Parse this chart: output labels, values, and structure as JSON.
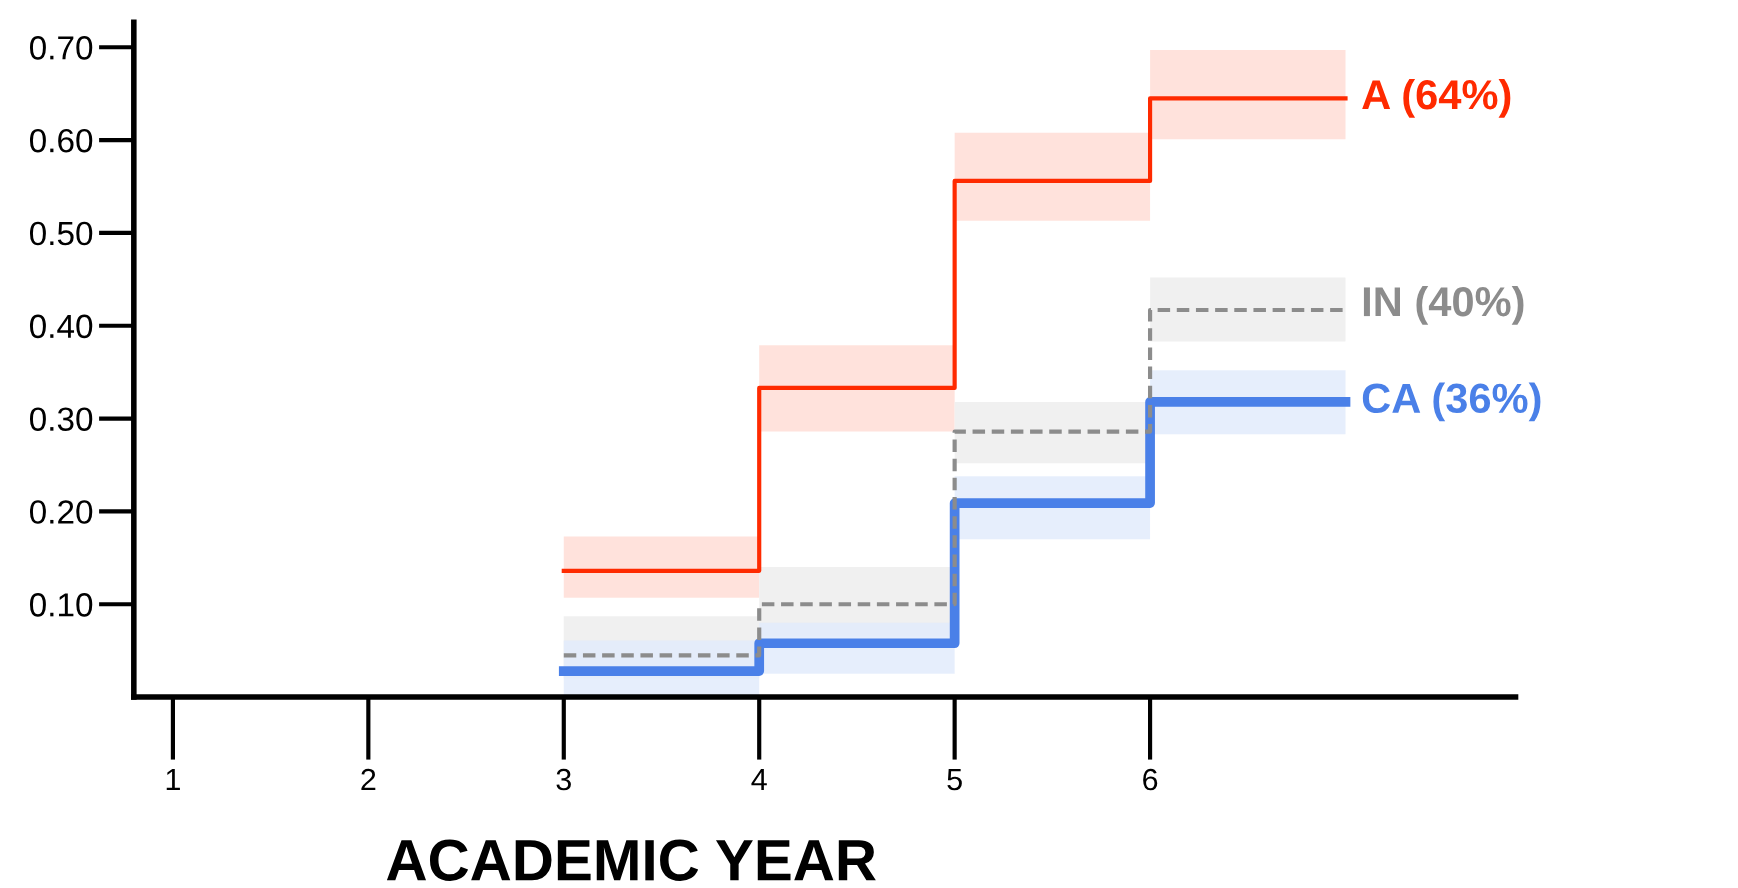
{
  "chart_data": {
    "type": "step",
    "xlabel": "ACADEMIC YEAR",
    "x": [
      3,
      4,
      5,
      6,
      7
    ],
    "series": [
      {
        "name": "A (64%)",
        "color": "#ff2a00",
        "values": [
          0.136,
          0.333,
          0.556,
          0.645,
          0.645
        ],
        "lower": [
          0.107,
          0.286,
          0.513,
          0.601,
          0.601
        ],
        "upper": [
          0.173,
          0.379,
          0.608,
          0.697,
          0.697
        ],
        "line_style": "solid"
      },
      {
        "name": "IN (40%)",
        "color": "#8c8c8c",
        "values": [
          0.045,
          0.1,
          0.286,
          0.417,
          0.417
        ],
        "lower": [
          0.02,
          0.065,
          0.252,
          0.383,
          0.383
        ],
        "upper": [
          0.087,
          0.14,
          0.318,
          0.452,
          0.452
        ],
        "line_style": "dashed"
      },
      {
        "name": "CA (36%)",
        "color": "#4a80e8",
        "values": [
          0.028,
          0.058,
          0.209,
          0.318,
          0.318
        ],
        "lower": [
          0.0,
          0.025,
          0.17,
          0.283,
          0.283
        ],
        "upper": [
          0.061,
          0.08,
          0.238,
          0.352,
          0.352
        ],
        "line_style": "solid"
      }
    ],
    "xlim": [
      0.8,
      7.87
    ],
    "ylim": [
      0,
      0.727
    ],
    "xticks": [
      1,
      2,
      3,
      4,
      5,
      6
    ],
    "yticks": [
      {
        "value": 0.1,
        "label": "0.10"
      },
      {
        "value": 0.2,
        "label": "0.20"
      },
      {
        "value": 0.3,
        "label": "0.30"
      },
      {
        "value": 0.4,
        "label": "0.40"
      },
      {
        "value": 0.5,
        "label": "0.50"
      },
      {
        "value": 0.6,
        "label": "0.60"
      },
      {
        "value": 0.7,
        "label": "0.70"
      }
    ],
    "grid": false,
    "legend": false
  }
}
